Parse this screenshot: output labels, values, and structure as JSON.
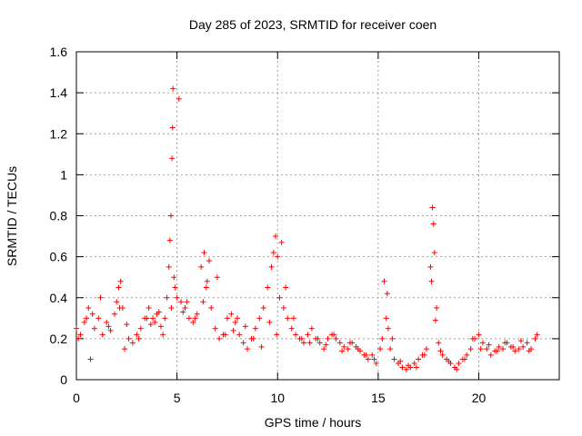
{
  "chart_data": {
    "type": "scatter",
    "title": "Day 285 of 2023, SRMTID for receiver coen",
    "xlabel": "GPS time / hours",
    "ylabel": "SRMTID / TECUs",
    "xlim": [
      0,
      24
    ],
    "ylim": [
      0,
      1.6
    ],
    "xticks": [
      0,
      5,
      10,
      15,
      20
    ],
    "xtick_labels": [
      "0",
      "5",
      "10",
      "15",
      "20"
    ],
    "yticks": [
      0,
      0.2,
      0.4,
      0.6,
      0.8,
      1.0,
      1.2,
      1.4,
      1.6
    ],
    "ytick_labels": [
      "0",
      "0.2",
      "0.4",
      "0.6",
      "0.8",
      "1",
      "1.2",
      "1.4",
      "1.6"
    ],
    "grid": true,
    "marker": "+",
    "marker_color": "#ff0000",
    "series": [
      {
        "name": "SRMTID",
        "x": [
          0.0,
          0.2,
          0.4,
          0.6,
          0.7,
          0.9,
          1.1,
          1.3,
          1.5,
          1.7,
          1.9,
          2.0,
          2.1,
          2.2,
          2.3,
          2.4,
          2.6,
          2.8,
          3.0,
          3.2,
          3.4,
          3.6,
          3.8,
          3.9,
          4.0,
          4.2,
          4.4,
          4.5,
          4.6,
          4.65,
          4.7,
          4.75,
          4.8,
          4.85,
          4.9,
          5.0,
          5.2,
          5.4,
          5.6,
          5.8,
          6.0,
          6.2,
          6.35,
          6.5,
          6.7,
          6.9,
          7.1,
          7.3,
          7.5,
          7.7,
          7.9,
          8.1,
          8.3,
          8.5,
          8.7,
          8.9,
          9.1,
          9.3,
          9.5,
          9.7,
          9.8,
          9.9,
          10.0,
          10.1,
          10.3,
          10.5,
          10.7,
          10.9,
          11.1,
          11.3,
          11.5,
          11.7,
          11.9,
          12.1,
          12.3,
          12.5,
          12.7,
          12.9,
          13.1,
          13.3,
          13.5,
          13.7,
          13.9,
          14.1,
          14.3,
          14.5,
          14.7,
          14.9,
          15.1,
          15.3,
          15.4,
          15.5,
          15.6,
          15.8,
          16.0,
          16.2,
          16.4,
          16.6,
          16.8,
          17.0,
          17.2,
          17.4,
          17.6,
          17.7,
          17.8,
          17.9,
          18.0,
          18.2,
          18.4,
          18.6,
          18.8,
          19.0,
          19.2,
          19.4,
          19.6,
          19.8,
          20.0,
          20.2,
          20.4,
          20.6,
          20.8,
          21.0,
          21.2,
          21.4,
          21.6,
          21.8,
          22.0,
          22.2,
          22.4,
          22.6,
          22.8,
          0.1,
          0.5,
          0.8,
          1.2,
          1.6,
          2.15,
          2.5,
          3.1,
          3.5,
          3.7,
          4.1,
          4.3,
          4.72,
          4.78,
          5.1,
          5.3,
          5.5,
          5.9,
          6.3,
          6.45,
          6.6,
          7.0,
          7.4,
          7.8,
          8.0,
          8.4,
          8.8,
          9.2,
          9.6,
          9.95,
          10.2,
          10.4,
          10.8,
          11.2,
          11.6,
          12.0,
          12.4,
          12.8,
          13.2,
          13.6,
          14.0,
          14.4,
          14.8,
          15.2,
          15.45,
          15.7,
          16.1,
          16.5,
          16.9,
          17.3,
          17.65,
          17.75,
          17.85,
          18.1,
          18.5,
          18.9,
          19.3,
          19.7,
          20.1,
          20.5,
          20.9,
          21.3,
          21.7,
          22.1,
          22.5,
          22.9
        ],
        "y": [
          0.25,
          0.22,
          0.28,
          0.35,
          0.1,
          0.25,
          0.3,
          0.22,
          0.28,
          0.24,
          0.32,
          0.38,
          0.45,
          0.48,
          0.35,
          0.15,
          0.2,
          0.18,
          0.22,
          0.25,
          0.3,
          0.35,
          0.3,
          0.28,
          0.32,
          0.26,
          0.3,
          0.4,
          0.55,
          0.68,
          0.8,
          1.08,
          1.42,
          0.5,
          0.45,
          0.4,
          0.38,
          0.35,
          0.3,
          0.28,
          0.32,
          0.55,
          0.62,
          0.48,
          0.35,
          0.25,
          0.2,
          0.22,
          0.3,
          0.32,
          0.28,
          0.22,
          0.18,
          0.15,
          0.2,
          0.25,
          0.3,
          0.35,
          0.45,
          0.55,
          0.62,
          0.7,
          0.6,
          0.4,
          0.35,
          0.3,
          0.25,
          0.22,
          0.2,
          0.18,
          0.22,
          0.25,
          0.2,
          0.18,
          0.15,
          0.2,
          0.22,
          0.2,
          0.18,
          0.16,
          0.15,
          0.18,
          0.16,
          0.14,
          0.12,
          0.1,
          0.12,
          0.08,
          0.15,
          0.48,
          0.3,
          0.25,
          0.15,
          0.1,
          0.08,
          0.06,
          0.05,
          0.06,
          0.08,
          0.1,
          0.12,
          0.15,
          0.55,
          0.84,
          0.62,
          0.35,
          0.18,
          0.12,
          0.1,
          0.08,
          0.06,
          0.08,
          0.1,
          0.12,
          0.15,
          0.2,
          0.22,
          0.18,
          0.15,
          0.12,
          0.14,
          0.16,
          0.15,
          0.18,
          0.16,
          0.14,
          0.15,
          0.16,
          0.18,
          0.15,
          0.2,
          0.2,
          0.3,
          0.32,
          0.4,
          0.26,
          0.35,
          0.27,
          0.2,
          0.3,
          0.27,
          0.33,
          0.22,
          0.35,
          1.23,
          1.37,
          0.33,
          0.38,
          0.3,
          0.38,
          0.45,
          0.58,
          0.5,
          0.22,
          0.24,
          0.3,
          0.26,
          0.2,
          0.16,
          0.28,
          0.22,
          0.67,
          0.45,
          0.3,
          0.2,
          0.18,
          0.2,
          0.17,
          0.22,
          0.14,
          0.18,
          0.15,
          0.12,
          0.1,
          0.2,
          0.42,
          0.2,
          0.09,
          0.07,
          0.06,
          0.12,
          0.48,
          0.76,
          0.29,
          0.14,
          0.09,
          0.05,
          0.1,
          0.2,
          0.15,
          0.17,
          0.14,
          0.18,
          0.16,
          0.19,
          0.14,
          0.22
        ]
      }
    ]
  }
}
